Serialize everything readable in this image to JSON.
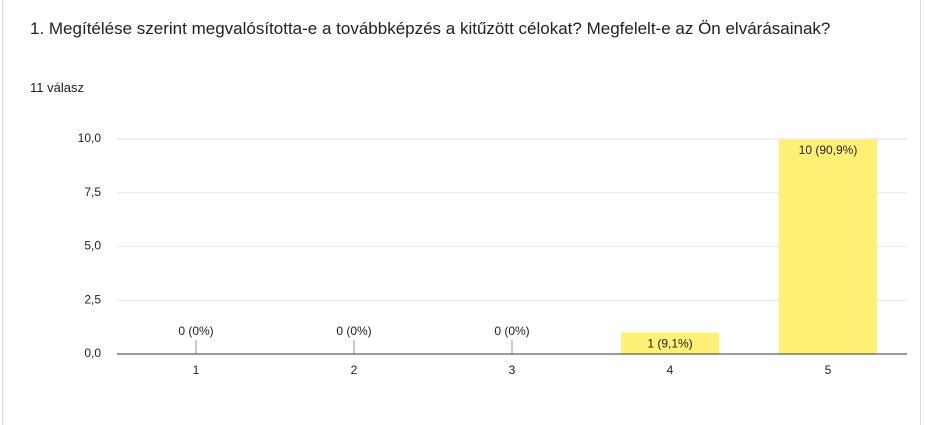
{
  "chart_data": {
    "type": "bar",
    "title": "1. Megítélése szerint megvalósította-e a továbbképzés a kitűzött célokat? Megfelelt-e az Ön elvárásainak?",
    "subtitle": "11 válasz",
    "categories": [
      "1",
      "2",
      "3",
      "4",
      "5"
    ],
    "values": [
      0,
      0,
      0,
      1,
      10
    ],
    "value_labels": [
      "0 (0%)",
      "0 (0%)",
      "0 (0%)",
      "1 (9,1%)",
      "10 (90,9%)"
    ],
    "color": "#fff176",
    "ylim": [
      0,
      10
    ],
    "yticks": [
      {
        "value": 0,
        "label": "0,0"
      },
      {
        "value": 2.5,
        "label": "2,5"
      },
      {
        "value": 5,
        "label": "5,0"
      },
      {
        "value": 7.5,
        "label": "7,5"
      },
      {
        "value": 10,
        "label": "10,0"
      }
    ],
    "grid": true
  }
}
